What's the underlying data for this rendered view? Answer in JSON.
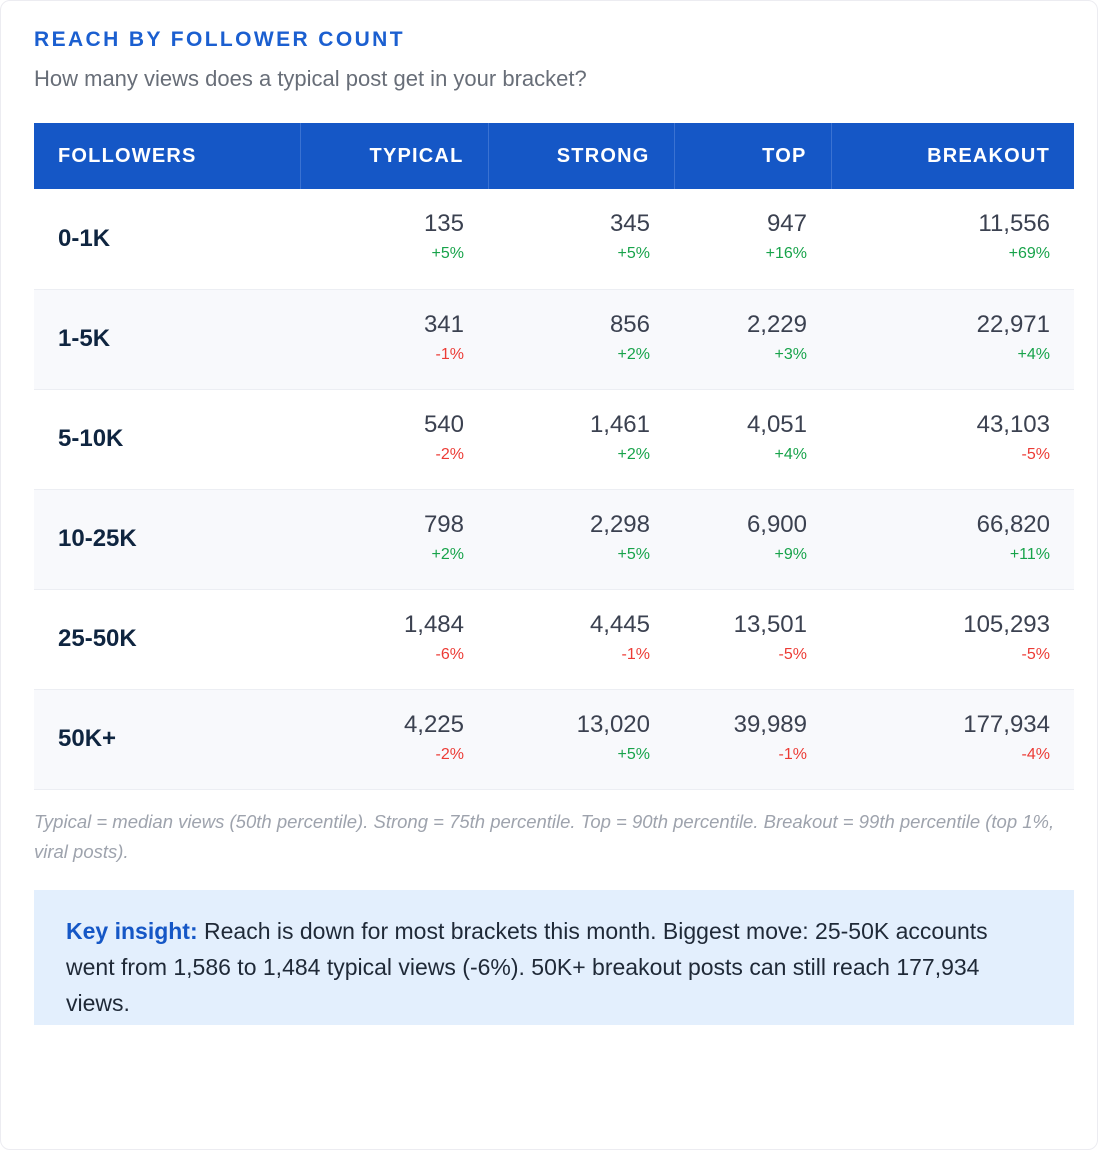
{
  "title": "REACH BY FOLLOWER COUNT",
  "subtitle": "How many views does a typical post get in your bracket?",
  "colors": {
    "accent": "#1557c6",
    "positive": "#17a34a",
    "negative": "#ec3b35",
    "insight_bg": "#e3effd"
  },
  "chart_data": {
    "type": "table",
    "columns": [
      "FOLLOWERS",
      "TYPICAL",
      "STRONG",
      "TOP",
      "BREAKOUT"
    ],
    "rows": [
      {
        "bracket": "0-1K",
        "cells": [
          {
            "value": "135",
            "change": "+5%",
            "trend": "up"
          },
          {
            "value": "345",
            "change": "+5%",
            "trend": "up"
          },
          {
            "value": "947",
            "change": "+16%",
            "trend": "up"
          },
          {
            "value": "11,556",
            "change": "+69%",
            "trend": "up"
          }
        ]
      },
      {
        "bracket": "1-5K",
        "cells": [
          {
            "value": "341",
            "change": "-1%",
            "trend": "down"
          },
          {
            "value": "856",
            "change": "+2%",
            "trend": "up"
          },
          {
            "value": "2,229",
            "change": "+3%",
            "trend": "up"
          },
          {
            "value": "22,971",
            "change": "+4%",
            "trend": "up"
          }
        ]
      },
      {
        "bracket": "5-10K",
        "cells": [
          {
            "value": "540",
            "change": "-2%",
            "trend": "down"
          },
          {
            "value": "1,461",
            "change": "+2%",
            "trend": "up"
          },
          {
            "value": "4,051",
            "change": "+4%",
            "trend": "up"
          },
          {
            "value": "43,103",
            "change": "-5%",
            "trend": "down"
          }
        ]
      },
      {
        "bracket": "10-25K",
        "cells": [
          {
            "value": "798",
            "change": "+2%",
            "trend": "up"
          },
          {
            "value": "2,298",
            "change": "+5%",
            "trend": "up"
          },
          {
            "value": "6,900",
            "change": "+9%",
            "trend": "up"
          },
          {
            "value": "66,820",
            "change": "+11%",
            "trend": "up"
          }
        ]
      },
      {
        "bracket": "25-50K",
        "cells": [
          {
            "value": "1,484",
            "change": "-6%",
            "trend": "down"
          },
          {
            "value": "4,445",
            "change": "-1%",
            "trend": "down"
          },
          {
            "value": "13,501",
            "change": "-5%",
            "trend": "down"
          },
          {
            "value": "105,293",
            "change": "-5%",
            "trend": "down"
          }
        ]
      },
      {
        "bracket": "50K+",
        "cells": [
          {
            "value": "4,225",
            "change": "-2%",
            "trend": "down"
          },
          {
            "value": "13,020",
            "change": "+5%",
            "trend": "up"
          },
          {
            "value": "39,989",
            "change": "-1%",
            "trend": "down"
          },
          {
            "value": "177,934",
            "change": "-4%",
            "trend": "down"
          }
        ]
      }
    ]
  },
  "footnote": "Typical = median views (50th percentile). Strong = 75th percentile. Top = 90th percentile. Breakout = 99th percentile (top 1%, viral posts).",
  "insight": {
    "label": "Key insight:",
    "text": " Reach is down for most brackets this month. Biggest move: 25-50K accounts went from 1,586 to 1,484 typical views (-6%). 50K+ breakout posts can still reach 177,934 views."
  }
}
